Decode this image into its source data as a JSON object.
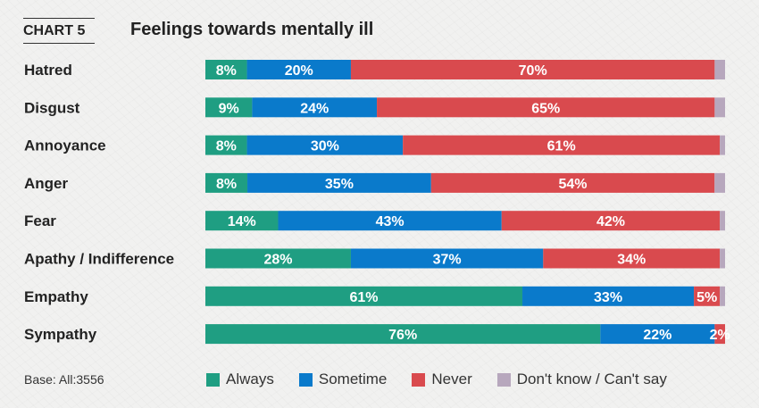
{
  "header": {
    "tag": "CHART 5",
    "title": "Feelings towards mentally ill"
  },
  "footer": {
    "base_note": "Base: All:3556"
  },
  "colors": {
    "Always": "#1f9e82",
    "Sometime": "#0a7acb",
    "Never": "#d94a4e",
    "Don't know / Can't say": "#b7a7bd"
  },
  "chart_data": {
    "type": "bar",
    "orientation": "horizontal",
    "stacked": true,
    "categories": [
      "Hatred",
      "Disgust",
      "Annoyance",
      "Anger",
      "Fear",
      "Apathy / Indifference",
      "Empathy",
      "Sympathy"
    ],
    "series": [
      {
        "name": "Always",
        "values": [
          8,
          9,
          8,
          8,
          14,
          28,
          61,
          76
        ],
        "labels": [
          "8%",
          "9%",
          "8%",
          "8%",
          "14%",
          "28%",
          "61%",
          "76%"
        ]
      },
      {
        "name": "Sometime",
        "values": [
          20,
          24,
          30,
          35,
          43,
          37,
          33,
          22
        ],
        "labels": [
          "20%",
          "24%",
          "30%",
          "35%",
          "43%",
          "37%",
          "33%",
          "22%"
        ]
      },
      {
        "name": "Never",
        "values": [
          70,
          65,
          61,
          54,
          42,
          34,
          5,
          2
        ],
        "labels": [
          "70%",
          "65%",
          "61%",
          "54%",
          "42%",
          "34%",
          "5%",
          "2%"
        ]
      },
      {
        "name": "Don't know / Can't say",
        "values": [
          2,
          2,
          1,
          2,
          1,
          1,
          1,
          0
        ],
        "labels": [
          "",
          "",
          "",
          "",
          "",
          "",
          "",
          ""
        ]
      }
    ],
    "xlim": [
      0,
      100
    ],
    "legend_position": "bottom"
  }
}
